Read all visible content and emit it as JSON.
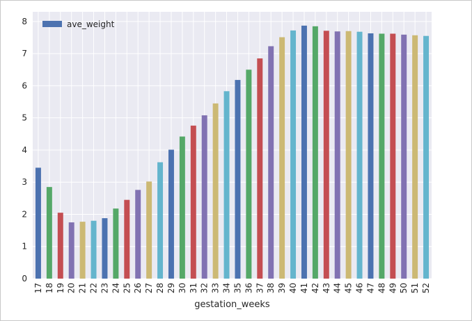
{
  "chart_data": {
    "type": "bar",
    "xlabel": "gestation_weeks",
    "ylabel": "",
    "ylim": [
      0,
      8.3
    ],
    "yticks": [
      0,
      1,
      2,
      3,
      4,
      5,
      6,
      7,
      8
    ],
    "grid": true,
    "legend": {
      "placement": "top-left",
      "entries": [
        "ave_weight"
      ]
    },
    "categories": [
      "17",
      "18",
      "19",
      "20",
      "21",
      "22",
      "23",
      "24",
      "25",
      "26",
      "27",
      "28",
      "29",
      "30",
      "31",
      "32",
      "33",
      "34",
      "35",
      "36",
      "37",
      "38",
      "39",
      "40",
      "41",
      "42",
      "43",
      "44",
      "45",
      "46",
      "47",
      "48",
      "49",
      "50",
      "51",
      "52"
    ],
    "series": [
      {
        "name": "ave_weight",
        "values": [
          3.45,
          2.85,
          2.05,
          1.75,
          1.77,
          1.8,
          1.88,
          2.18,
          2.45,
          2.76,
          3.02,
          3.62,
          4.01,
          4.42,
          4.76,
          5.08,
          5.45,
          5.83,
          6.18,
          6.5,
          6.85,
          7.23,
          7.51,
          7.72,
          7.87,
          7.85,
          7.71,
          7.69,
          7.7,
          7.68,
          7.63,
          7.62,
          7.62,
          7.59,
          7.57,
          7.55
        ]
      }
    ],
    "colors": [
      "#4c72b0",
      "#55a868",
      "#c44e52",
      "#8172b2",
      "#ccb974",
      "#64b5cd"
    ],
    "plot_background": "#eaeaf2",
    "grid_color": "#ffffff"
  }
}
